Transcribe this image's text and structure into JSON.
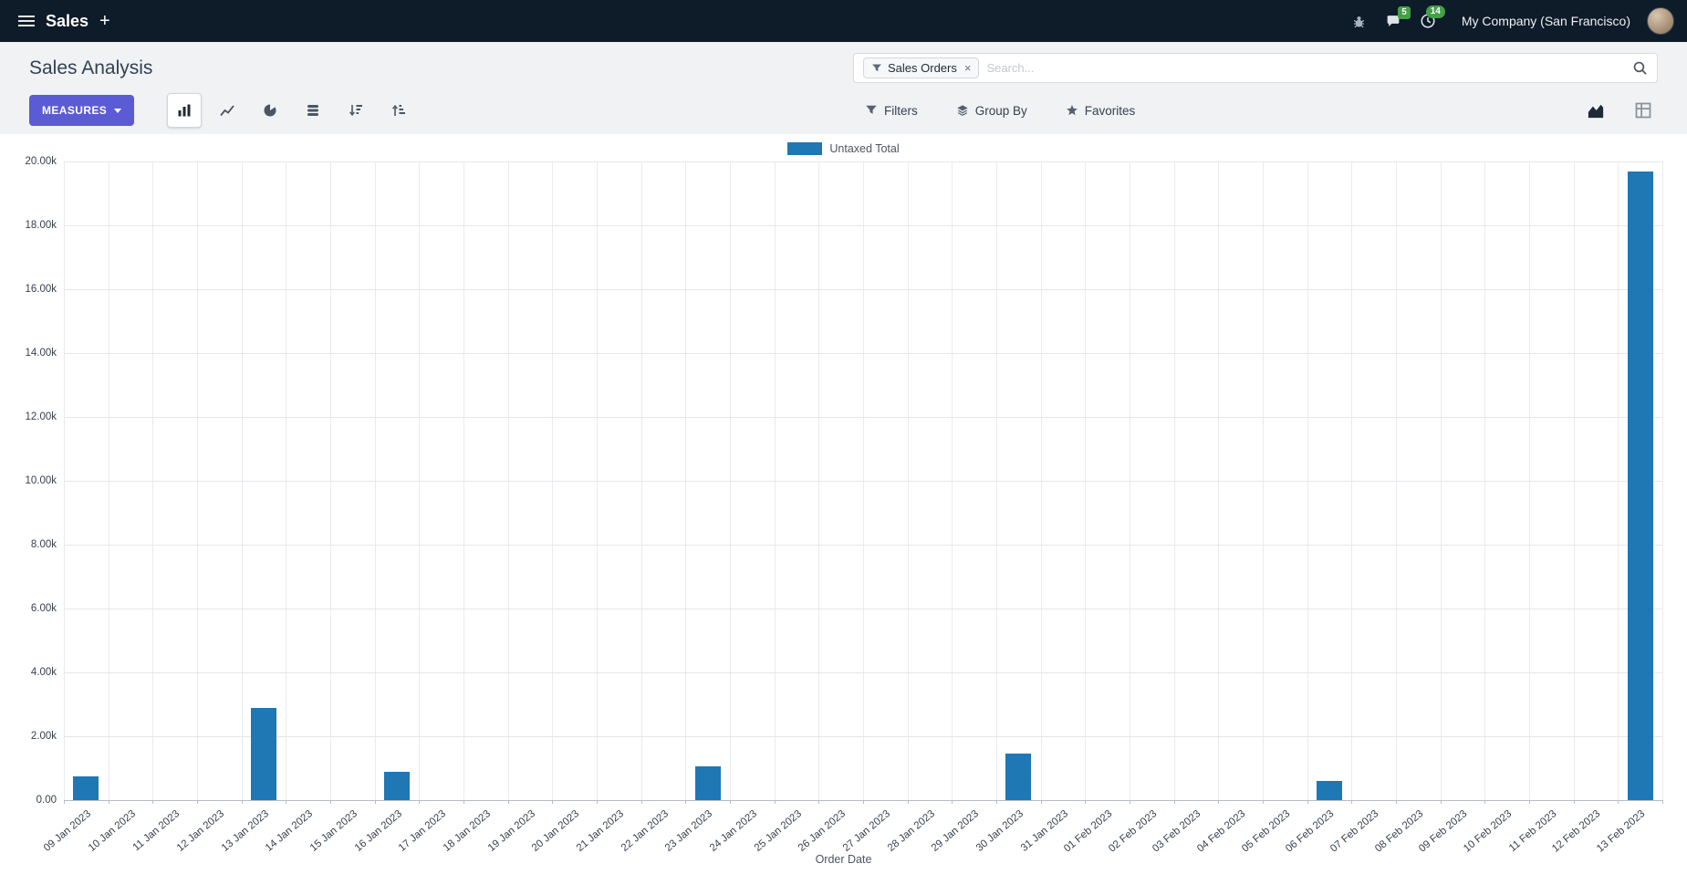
{
  "colors": {
    "navbar_bg": "#0e1b29",
    "page_bg": "#f0f2f4",
    "accent": "#5b5bd6",
    "bar": "#1f77b4",
    "badge_green": "#43a047"
  },
  "navbar": {
    "app_name": "Sales",
    "plus_label": "+",
    "messages_badge": "5",
    "activities_badge": "14",
    "company": "My Company (San Francisco)"
  },
  "control_panel": {
    "title": "Sales Analysis",
    "measures_label": "MEASURES",
    "filters_label": "Filters",
    "group_by_label": "Group By",
    "favorites_label": "Favorites"
  },
  "search": {
    "facet_label": "Sales Orders",
    "remove_facet": "×",
    "placeholder": "Search..."
  },
  "chart_data": {
    "type": "bar",
    "title": "Sales Analysis",
    "legend": [
      "Untaxed Total"
    ],
    "legend_position": "top-center",
    "grid": true,
    "xlabel": "Order Date",
    "ylabel": "",
    "ylim": [
      0,
      20000
    ],
    "ytick_step": 2000,
    "ytick_labels": [
      "0.00",
      "2.00k",
      "4.00k",
      "6.00k",
      "8.00k",
      "10.00k",
      "12.00k",
      "14.00k",
      "16.00k",
      "18.00k",
      "20.00k"
    ],
    "categories": [
      "09 Jan 2023",
      "10 Jan 2023",
      "11 Jan 2023",
      "12 Jan 2023",
      "13 Jan 2023",
      "14 Jan 2023",
      "15 Jan 2023",
      "16 Jan 2023",
      "17 Jan 2023",
      "18 Jan 2023",
      "19 Jan 2023",
      "20 Jan 2023",
      "21 Jan 2023",
      "22 Jan 2023",
      "23 Jan 2023",
      "24 Jan 2023",
      "25 Jan 2023",
      "26 Jan 2023",
      "27 Jan 2023",
      "28 Jan 2023",
      "29 Jan 2023",
      "30 Jan 2023",
      "31 Jan 2023",
      "01 Feb 2023",
      "02 Feb 2023",
      "03 Feb 2023",
      "04 Feb 2023",
      "05 Feb 2023",
      "06 Feb 2023",
      "07 Feb 2023",
      "08 Feb 2023",
      "09 Feb 2023",
      "10 Feb 2023",
      "11 Feb 2023",
      "12 Feb 2023",
      "13 Feb 2023"
    ],
    "values": [
      750,
      0,
      0,
      0,
      2900,
      0,
      0,
      900,
      0,
      0,
      0,
      0,
      0,
      0,
      1050,
      0,
      0,
      0,
      0,
      0,
      0,
      1450,
      0,
      0,
      0,
      0,
      0,
      0,
      600,
      0,
      0,
      0,
      0,
      0,
      0,
      19700
    ]
  }
}
